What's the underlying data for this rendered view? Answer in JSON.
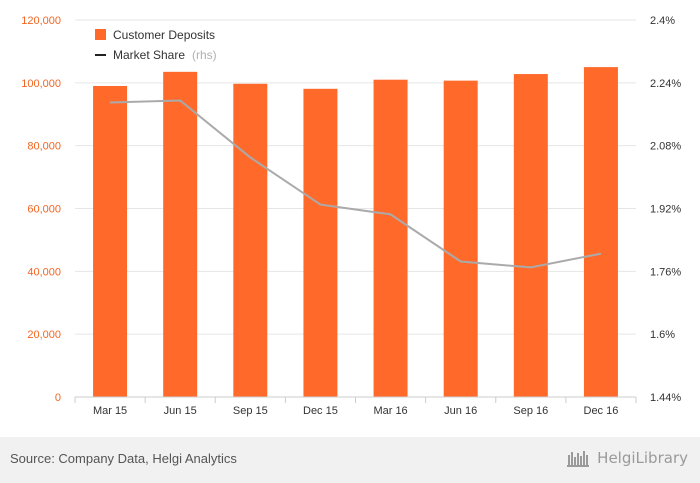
{
  "chart_data": {
    "type": "bar",
    "categories": [
      "Mar 15",
      "Jun 15",
      "Sep 15",
      "Dec 15",
      "Mar 16",
      "Jun 16",
      "Sep 16",
      "Dec 16"
    ],
    "series": [
      {
        "name": "Customer Deposits",
        "type": "bar",
        "axis": "left",
        "color": "#ff6a2b",
        "values": [
          99000,
          103500,
          99700,
          98100,
          101000,
          100700,
          102800,
          105000
        ]
      },
      {
        "name": "Market Share",
        "type": "line",
        "axis": "right",
        "color": "#aaaaaa",
        "values": [
          2.19,
          2.195,
          2.05,
          1.93,
          1.905,
          1.785,
          1.77,
          1.805
        ]
      }
    ],
    "legend_note": "(rhs)",
    "y_left": {
      "range": [
        0,
        120000
      ],
      "ticks": [
        "0",
        "20,000",
        "40,000",
        "60,000",
        "80,000",
        "100,000",
        "120,000"
      ]
    },
    "y_right": {
      "range": [
        1.44,
        2.4
      ],
      "ticks": [
        "1.44%",
        "1.6%",
        "1.76%",
        "1.92%",
        "2.08%",
        "2.24%",
        "2.4%"
      ]
    },
    "grid": true,
    "legend_position": "top-left"
  },
  "footer": {
    "source": "Source: Company Data, Helgi Analytics",
    "logo": "HelgiLibrary"
  }
}
